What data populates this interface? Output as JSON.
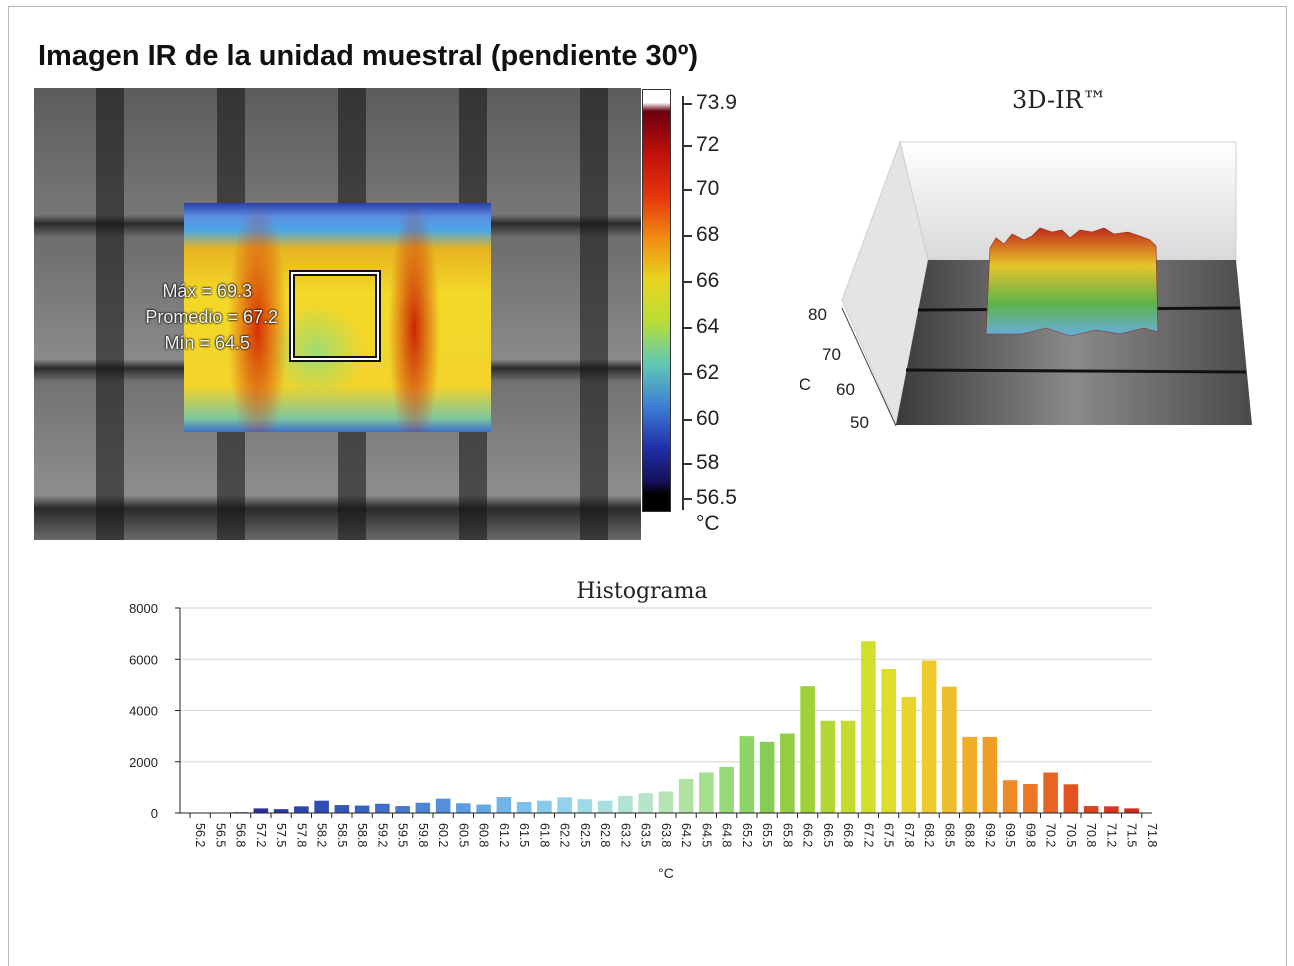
{
  "page": {
    "title": "Imagen IR de la unidad muestral (pendiente 30º)"
  },
  "ir_image": {
    "stats": {
      "max": "Máx = 69.3",
      "mean": "Promedio = 67.2",
      "min": "Mín = 64.5"
    },
    "colorbar": {
      "labels": [
        "73.9",
        "72",
        "70",
        "68",
        "66",
        "64",
        "62",
        "60",
        "58",
        "56.5"
      ],
      "unit": "°C"
    }
  },
  "view_3d": {
    "title": "3D-IR™",
    "axis_ticks": [
      "80",
      "70",
      "60",
      "50"
    ],
    "axis_unit": "°C"
  },
  "chart_data": {
    "type": "bar",
    "title": "Histograma",
    "xlabel": "°C",
    "ylabel": "",
    "ylim": [
      0,
      8000
    ],
    "y_ticks": [
      "8000",
      "6000",
      "4000",
      "2000",
      "0"
    ],
    "grid": true,
    "categories": [
      "56.2",
      "56.5",
      "56.8",
      "57.2",
      "57.5",
      "57.8",
      "58.2",
      "58.5",
      "58.8",
      "59.2",
      "59.5",
      "59.8",
      "60.2",
      "60.5",
      "60.8",
      "61.2",
      "61.5",
      "61.8",
      "62.2",
      "62.5",
      "62.8",
      "63.2",
      "63.5",
      "63.8",
      "64.2",
      "64.5",
      "64.8",
      "65.2",
      "65.5",
      "65.8",
      "66.2",
      "66.5",
      "66.8",
      "67.2",
      "67.5",
      "67.8",
      "68.2",
      "68.5",
      "68.8",
      "69.2",
      "69.5",
      "69.8",
      "70.2",
      "70.5",
      "70.8",
      "71.2",
      "71.5",
      "71.8"
    ],
    "values": [
      0,
      0,
      30,
      180,
      150,
      260,
      480,
      310,
      290,
      360,
      270,
      400,
      560,
      380,
      330,
      620,
      430,
      480,
      610,
      540,
      480,
      670,
      770,
      840,
      1330,
      1580,
      1800,
      3000,
      2780,
      3100,
      4950,
      3600,
      3600,
      6700,
      5620,
      4530,
      5950,
      4930,
      2970,
      2970,
      1280,
      1130,
      1580,
      1120,
      270,
      260,
      180,
      0
    ],
    "bar_colors": [
      "#1e1a6e",
      "#1e1a6e",
      "#23258a",
      "#26309a",
      "#2a3aa4",
      "#2d44ad",
      "#2f4db5",
      "#3557bb",
      "#3a62c2",
      "#3f6dc9",
      "#4678cf",
      "#4d84d5",
      "#5590da",
      "#5d9ce0",
      "#66a8e4",
      "#70b4e8",
      "#7bbfea",
      "#86c9eb",
      "#92d2ea",
      "#9ed9e6",
      "#a9dfe0",
      "#b2e3d7",
      "#b7e5c8",
      "#b6e5b5",
      "#aee3a0",
      "#a3df8c",
      "#97da78",
      "#8bd465",
      "#88cd53",
      "#92cd44",
      "#a1d23a",
      "#b3d734",
      "#c3dc30",
      "#d2de2e",
      "#dedd2c",
      "#e6d62b",
      "#eccb2a",
      "#efbd29",
      "#f0ad28",
      "#f09c27",
      "#ee8a26",
      "#eb7724",
      "#e76522",
      "#e25320",
      "#dc421e",
      "#d6351c",
      "#d02a1b",
      "#c8221a"
    ]
  }
}
